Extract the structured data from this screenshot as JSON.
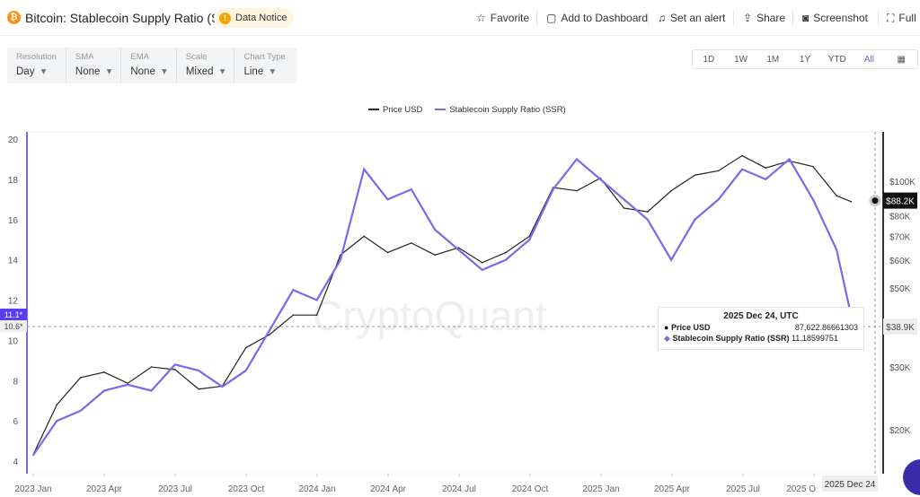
{
  "header": {
    "title": "Bitcoin: Stablecoin Supply Ratio (SSR)",
    "notice": "Data Notice",
    "actions": [
      "Favorite",
      "Add to Dashboard",
      "Set an alert",
      "Share",
      "Screenshot",
      "Full"
    ]
  },
  "controls": [
    {
      "label": "Resolution",
      "value": "Day"
    },
    {
      "label": "SMA",
      "value": "None"
    },
    {
      "label": "EMA",
      "value": "None"
    },
    {
      "label": "Scale",
      "value": "Mixed"
    },
    {
      "label": "Chart Type",
      "value": "Line"
    }
  ],
  "ranges": [
    "1D",
    "1W",
    "1M",
    "1Y",
    "YTD",
    "All"
  ],
  "tooltip": {
    "date": "2025 Dec 24, UTC",
    "price_label": "Price USD",
    "price_value": "87,622.86661303",
    "ssr_label": "Stablecoin Supply Ratio (SSR)",
    "ssr_value": "11.18599751"
  },
  "watermark": "CryptoQuant",
  "colors": {
    "price": "#222222",
    "ssr": "#7b68ee"
  },
  "chart_data": {
    "type": "line",
    "legend": [
      "Price USD",
      "Stablecoin Supply Ratio (SSR)"
    ],
    "legend_position": "top-center",
    "x_ticks": [
      "2023 Jan",
      "2023 Apr",
      "2023 Jul",
      "2023 Oct",
      "2024 Jan",
      "2024 Apr",
      "2024 Jul",
      "2024 Oct",
      "2025 Jan",
      "2025 Apr",
      "2025 Jul",
      "2025 O"
    ],
    "x_cursor_label": "2025 Dec 24",
    "left_axis": {
      "ylim": [
        4,
        20
      ],
      "ticks": [
        "4",
        "6",
        "8",
        "10",
        "12",
        "14",
        "16",
        "18",
        "20"
      ],
      "cursor_labels": [
        "11.1*",
        "10.6*"
      ]
    },
    "right_axis": {
      "scale": "log",
      "ticks": [
        "$100K",
        "$80K",
        "$70K",
        "$60K",
        "$50K",
        "$30K",
        "$20K"
      ],
      "tick_values": [
        100000,
        80000,
        70000,
        60000,
        50000,
        30000,
        20000
      ],
      "current_label": "$88.2K",
      "cursor_label": "$38.9K"
    },
    "months": [
      "2023-01",
      "2023-02",
      "2023-03",
      "2023-04",
      "2023-05",
      "2023-06",
      "2023-07",
      "2023-08",
      "2023-09",
      "2023-10",
      "2023-11",
      "2023-12",
      "2024-01",
      "2024-02",
      "2024-03",
      "2024-04",
      "2024-05",
      "2024-06",
      "2024-07",
      "2024-08",
      "2024-09",
      "2024-10",
      "2024-11",
      "2024-12",
      "2025-01",
      "2025-02",
      "2025-03",
      "2025-04",
      "2025-05",
      "2025-06",
      "2025-07",
      "2025-08",
      "2025-09",
      "2025-10",
      "2025-11",
      "2025-12"
    ],
    "series": [
      {
        "name": "Price USD",
        "axis": "right",
        "values": [
          17000,
          23500,
          28000,
          29000,
          27000,
          30000,
          29500,
          26000,
          26500,
          34000,
          37000,
          42000,
          42000,
          62000,
          70000,
          63000,
          67000,
          62000,
          65000,
          59000,
          63000,
          70000,
          96000,
          94000,
          102000,
          84000,
          82000,
          94000,
          104000,
          107000,
          118000,
          109000,
          114000,
          110000,
          91000,
          87600
        ]
      },
      {
        "name": "Stablecoin Supply Ratio (SSR)",
        "axis": "left",
        "values": [
          4.3,
          6,
          6.5,
          7.5,
          7.8,
          7.5,
          8.8,
          8.5,
          7.7,
          8.5,
          10.5,
          12.5,
          12,
          14,
          18.5,
          17,
          17.5,
          15.5,
          14.5,
          13.5,
          14,
          15,
          17.5,
          19,
          18,
          17,
          16,
          14,
          16,
          17,
          18.5,
          18,
          19,
          17,
          14.5,
          11.2
        ]
      }
    ]
  }
}
